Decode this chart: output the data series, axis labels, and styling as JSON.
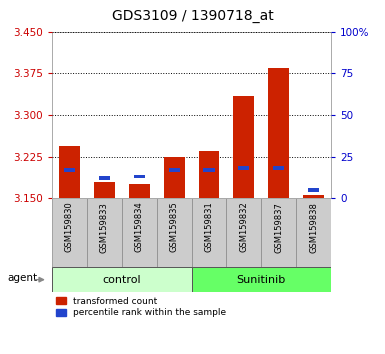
{
  "title": "GDS3109 / 1390718_at",
  "samples": [
    "GSM159830",
    "GSM159833",
    "GSM159834",
    "GSM159835",
    "GSM159831",
    "GSM159832",
    "GSM159837",
    "GSM159838"
  ],
  "groups": [
    "control",
    "control",
    "control",
    "control",
    "Sunitinib",
    "Sunitinib",
    "Sunitinib",
    "Sunitinib"
  ],
  "red_values": [
    3.245,
    3.18,
    3.175,
    3.225,
    3.235,
    3.335,
    3.385,
    3.155
  ],
  "blue_pct": [
    17,
    12,
    13,
    17,
    17,
    18,
    18,
    5
  ],
  "ymin": 3.15,
  "ymax": 3.45,
  "y_left_ticks": [
    3.15,
    3.225,
    3.3,
    3.375,
    3.45
  ],
  "y_right_ticks": [
    0,
    25,
    50,
    75,
    100
  ],
  "group_colors": {
    "control": "#ccffcc",
    "Sunitinib": "#66ff66"
  },
  "base_value": 3.15,
  "right_axis_color": "#0000cc",
  "left_axis_color": "#cc0000",
  "legend_red": "transformed count",
  "legend_blue": "percentile rank within the sample",
  "title_fontsize": 10,
  "tick_fontsize": 7.5,
  "bg_color": "#cccccc"
}
